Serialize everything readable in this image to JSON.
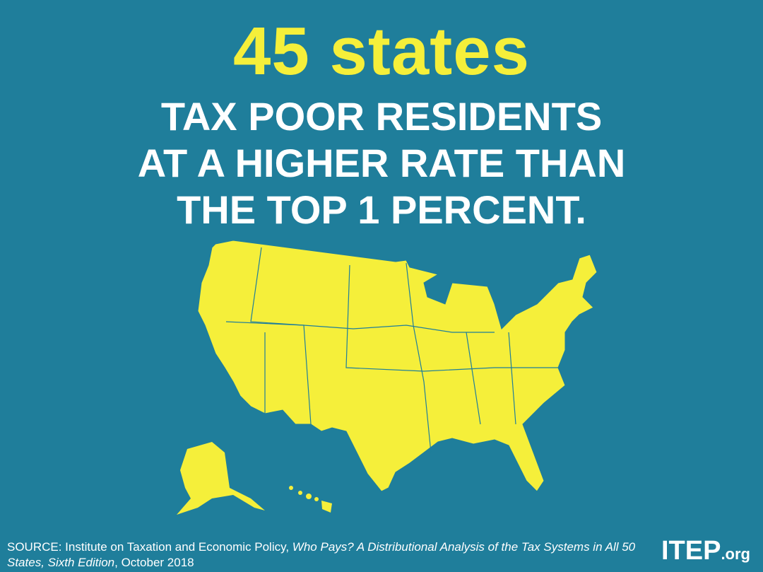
{
  "headline": "45 states",
  "subhead": [
    "TAX POOR RESIDENTS",
    "AT A HIGHER RATE THAN",
    "THE TOP 1 PERCENT."
  ],
  "source": {
    "prefix": "SOURCE: Institute on Taxation and Economic Policy, ",
    "title": "Who Pays? A Distributional Analysis of the Tax Systems in All 50 States, Sixth Edition",
    "suffix": ", October 2018"
  },
  "logo": {
    "name": "ITEP",
    "domain": ".org"
  }
}
